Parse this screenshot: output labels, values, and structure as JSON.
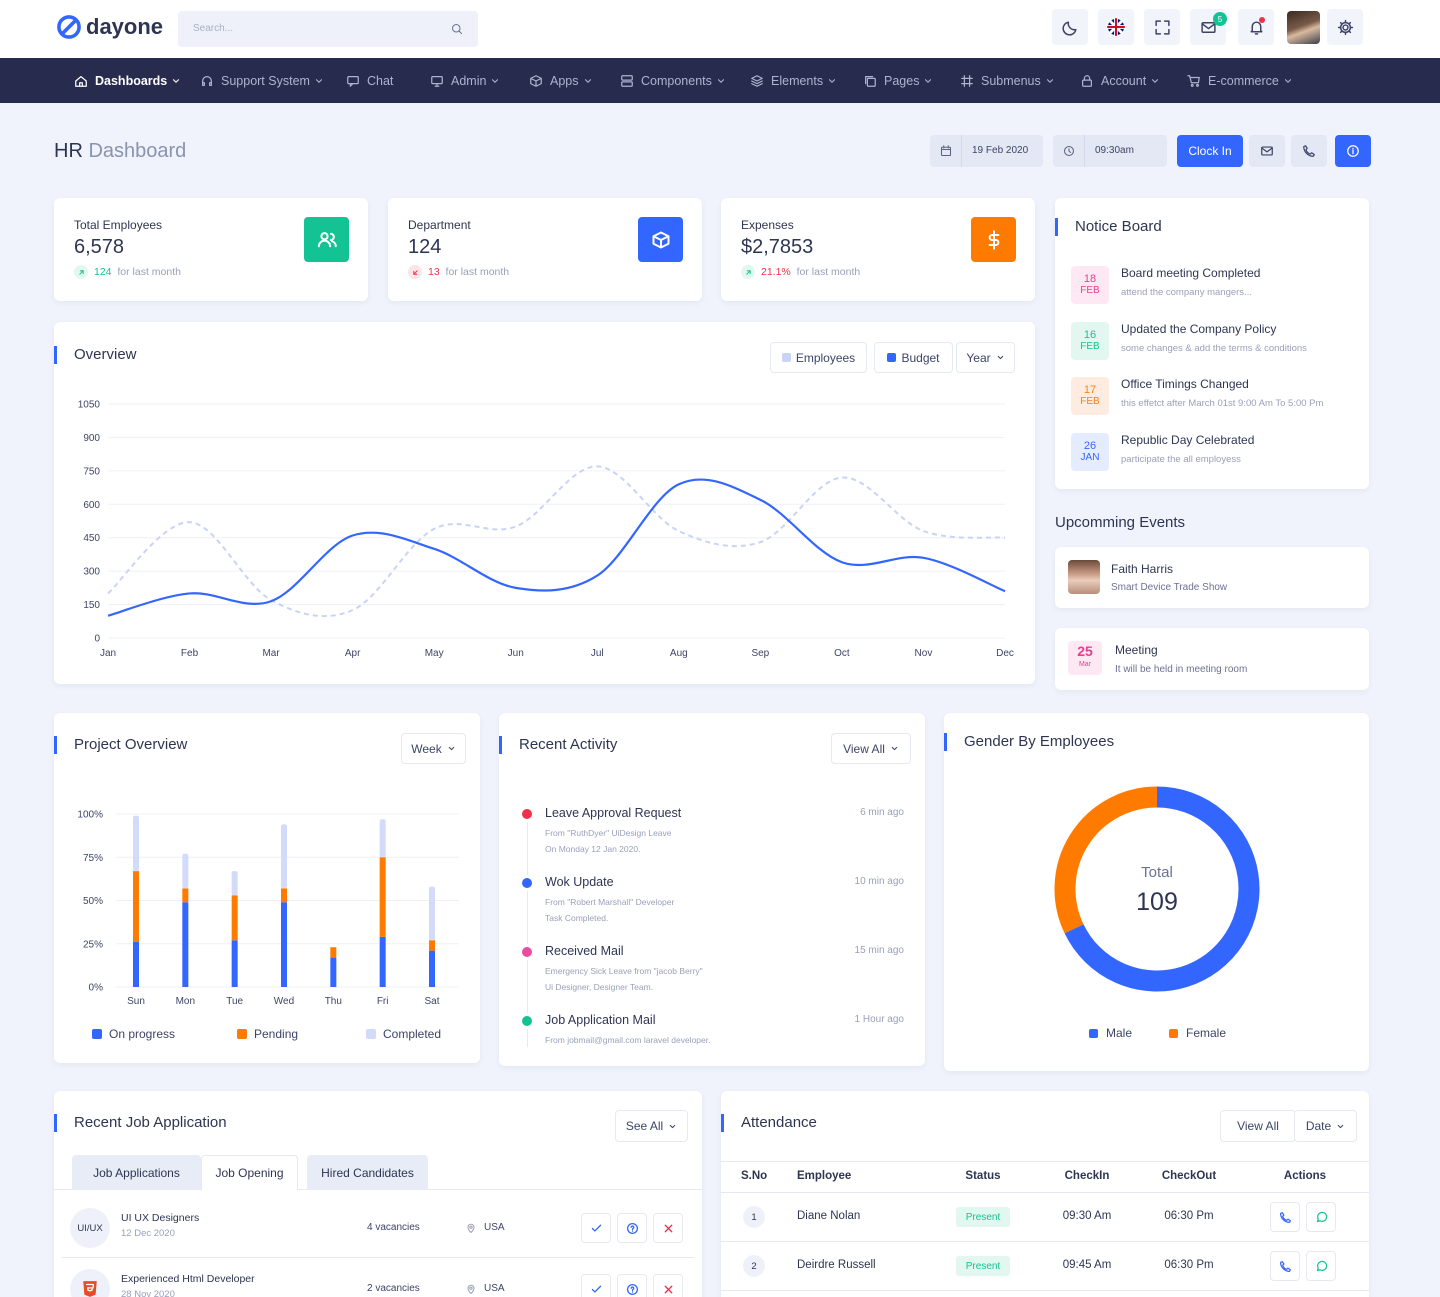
{
  "header": {
    "logo": "dayone",
    "search": "Search...",
    "mail_badge": 5
  },
  "nav": [
    "Dashboards",
    "Support System",
    "Chat",
    "Admin",
    "Apps",
    "Components",
    "Elements",
    "Pages",
    "Submenus",
    "Account",
    "E-commerce"
  ],
  "toolbar": {
    "title_strong": "HR",
    "title_rest": "Dashboard",
    "date": "19 Feb 2020",
    "time": "09:30am",
    "button": "Clock In"
  },
  "stats": [
    {
      "label": "Total Employees",
      "value": "6,578",
      "change": "124",
      "note": "for last month",
      "trend": "up"
    },
    {
      "label": "Department",
      "value": "124",
      "change": "13",
      "note": "for last month",
      "trend": "down"
    },
    {
      "label": "Expenses",
      "value": "$2,7853",
      "change": "21.1%",
      "note": "for last month",
      "trend": "up"
    }
  ],
  "notice_board": {
    "title": "Notice Board",
    "items": [
      {
        "day": "18",
        "month": "FEB",
        "title": "Board meeting Completed",
        "desc": "attend the company mangers..."
      },
      {
        "day": "16",
        "month": "FEB",
        "title": "Updated the Company Policy",
        "desc": "some changes & add the terms & conditions"
      },
      {
        "day": "17",
        "month": "FEB",
        "title": "Office Timings Changed",
        "desc": "this effetct after March 01st 9:00 Am To 5:00 Pm"
      },
      {
        "day": "26",
        "month": "JAN",
        "title": "Republic Day Celebrated",
        "desc": "participate the all employess"
      }
    ]
  },
  "events": {
    "title": "Upcomming Events",
    "items": [
      {
        "name": "Faith Harris",
        "desc": "Smart Device Trade Show"
      },
      {
        "day": "25",
        "month": "Mar",
        "name": "Meeting",
        "desc": "It will be held in meeting room"
      }
    ]
  },
  "chart_data": [
    {
      "type": "line",
      "title": "Overview",
      "filter": "Year",
      "categories": [
        "Jan",
        "Feb",
        "Mar",
        "Apr",
        "May",
        "Jun",
        "Jul",
        "Aug",
        "Sep",
        "Oct",
        "Nov",
        "Dec"
      ],
      "series": [
        {
          "name": "Employees",
          "color": "#c9d3f5",
          "dash": true,
          "values": [
            200,
            520,
            170,
            125,
            490,
            500,
            770,
            480,
            430,
            720,
            480,
            450
          ]
        },
        {
          "name": "Budget",
          "color": "#3366ff",
          "values": [
            100,
            200,
            165,
            460,
            400,
            225,
            280,
            690,
            620,
            340,
            360,
            210
          ]
        }
      ],
      "ylim": [
        0,
        1050
      ],
      "yticks": [
        0,
        150,
        300,
        450,
        600,
        750,
        900,
        1050
      ],
      "grid": true
    },
    {
      "type": "bar",
      "stacked": true,
      "title": "Project Overview",
      "filter": "Week",
      "categories": [
        "Sun",
        "Mon",
        "Tue",
        "Wed",
        "Thu",
        "Fri",
        "Sat"
      ],
      "series": [
        {
          "name": "On progress",
          "color": "#3366ff",
          "values": [
            26,
            49,
            27,
            49,
            17,
            29,
            21
          ]
        },
        {
          "name": "Pending",
          "color": "#ff7b00",
          "values": [
            41,
            8,
            26,
            8,
            6,
            46,
            6
          ]
        },
        {
          "name": "Completed",
          "color": "#d3dbfa",
          "values": [
            32,
            20,
            14,
            37,
            0,
            22,
            31
          ]
        }
      ],
      "ylim": [
        0,
        100
      ],
      "yticks": [
        {
          "value": 0,
          "label": "0%"
        },
        {
          "value": 25,
          "label": "25%"
        },
        {
          "value": 50,
          "label": "50%"
        },
        {
          "value": 75,
          "label": "75%"
        },
        {
          "value": 100,
          "label": "100%"
        }
      ],
      "grid": true
    },
    {
      "type": "donut",
      "title": "Gender By Employees",
      "categories": [
        "Male",
        "Female"
      ],
      "values": [
        74,
        35
      ],
      "colors": [
        "#3366ff",
        "#ff7b00"
      ],
      "center_label": "Total",
      "total": 109
    }
  ],
  "recent_activity": {
    "title": "Recent Activity",
    "button": "View All",
    "items": [
      {
        "title": "Leave Approval Request",
        "time": "6 min ago",
        "color": "#f0314a",
        "lines": [
          "From \"RuthDyer\" UiDesign Leave",
          "On Monday 12 Jan 2020."
        ]
      },
      {
        "title": "Wok Update",
        "time": "10 min ago",
        "color": "#3366ff",
        "lines": [
          "From \"Robert Marshall\" Developer",
          "Task Completed."
        ]
      },
      {
        "title": "Received Mail",
        "time": "15 min ago",
        "color": "#ec4ba0",
        "lines": [
          "Emergency Sick Leave from \"jacob Berry\"",
          "Ui Designer, Designer Team."
        ]
      },
      {
        "title": "Job Application Mail",
        "time": "1 Hour ago",
        "color": "#13c393",
        "lines": [
          "From jobmail@gmail.com laravel developer."
        ]
      }
    ]
  },
  "job_applications": {
    "title": "Recent Job Application",
    "button": "See All",
    "tabs": [
      "Job Applications",
      "Job Opening",
      "Hired Candidates"
    ],
    "rows": [
      {
        "badge": "UI/UX",
        "title": "UI UX Designers",
        "date": "12 Dec 2020",
        "vacancies": "4 vacancies",
        "location": "USA"
      },
      {
        "title": "Experienced Html Developer",
        "date": "28 Nov 2020",
        "vacancies": "2 vacancies",
        "location": "USA"
      }
    ]
  },
  "attendance": {
    "title": "Attendance",
    "buttons": [
      "View All",
      "Date"
    ],
    "columns": [
      "S.No",
      "Employee",
      "Status",
      "CheckIn",
      "CheckOut",
      "Actions"
    ],
    "rows": [
      [
        "1",
        "Diane Nolan",
        "Present",
        "09:30 Am",
        "06:30 Pm"
      ],
      [
        "2",
        "Deirdre Russell",
        "Present",
        "09:45 Am",
        "06:30 Pm"
      ]
    ]
  }
}
